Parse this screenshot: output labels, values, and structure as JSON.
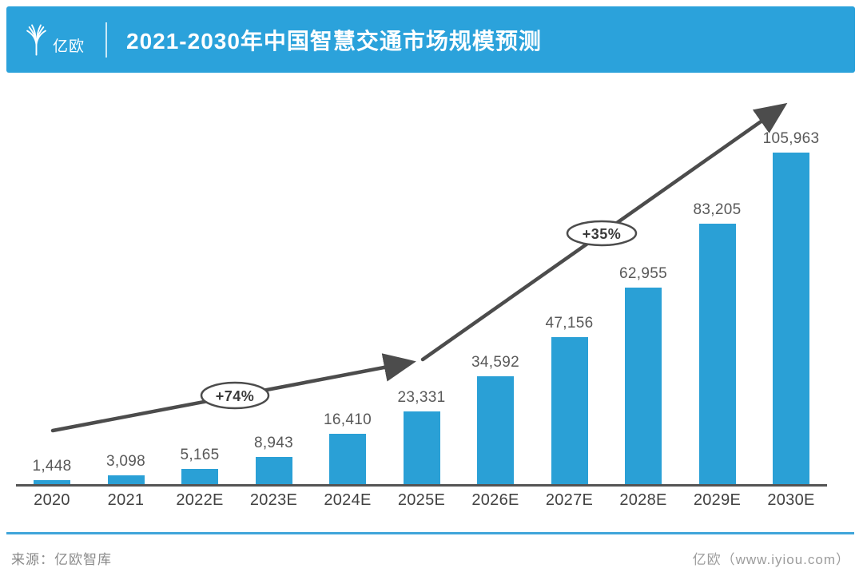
{
  "header": {
    "logo_text": "亿欧",
    "title": "2021-2030年中国智慧交通市场规模预测"
  },
  "chart_data": {
    "type": "bar",
    "title": "2021-2030年中国智慧交通市场规模预测",
    "categories": [
      "2020",
      "2021",
      "2022E",
      "2023E",
      "2024E",
      "2025E",
      "2026E",
      "2027E",
      "2028E",
      "2029E",
      "2030E"
    ],
    "values": [
      1448,
      3098,
      5165,
      8943,
      16410,
      23331,
      34592,
      47156,
      62955,
      83205,
      105963
    ],
    "value_labels": [
      "1,448",
      "3,098",
      "5,165",
      "8,943",
      "16,410",
      "23,331",
      "34,592",
      "47,156",
      "62,955",
      "83,205",
      "105,963"
    ],
    "ylim": [
      0,
      110000
    ],
    "grid": false,
    "legend": "none",
    "bar_color": "#2AA0D6",
    "trend_arrow_color": "#4C4C4C",
    "annotations": [
      {
        "label": "+74%",
        "from": "2020",
        "to": "2025E"
      },
      {
        "label": "+35%",
        "from": "2025E",
        "to": "2030E"
      }
    ]
  },
  "footer": {
    "source": "来源：亿欧智库",
    "brand": "亿欧（www.iyiou.com）"
  }
}
